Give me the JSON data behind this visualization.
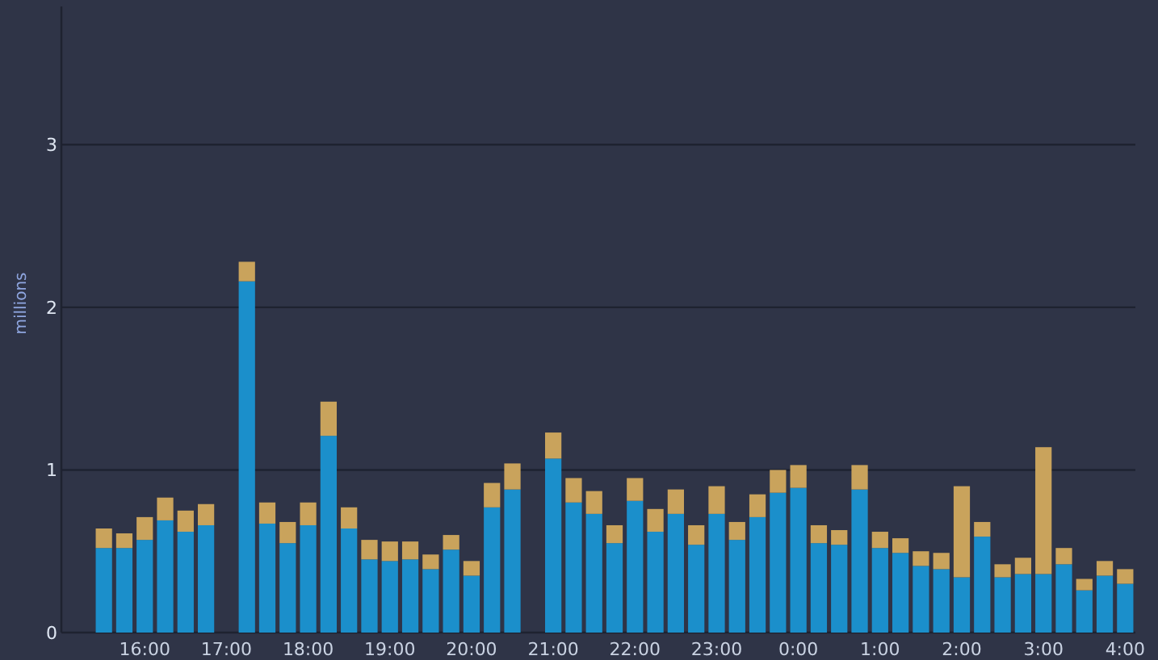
{
  "chart_data": {
    "type": "bar",
    "stacked": true,
    "ylabel": "millions",
    "categories": [
      null,
      null,
      "16:00",
      null,
      null,
      null,
      "17:00",
      null,
      null,
      null,
      "18:00",
      null,
      null,
      null,
      "19:00",
      null,
      null,
      null,
      "20:00",
      null,
      null,
      null,
      "21:00",
      null,
      null,
      null,
      "22:00",
      null,
      null,
      null,
      "23:00",
      null,
      null,
      null,
      "0:00",
      null,
      null,
      null,
      "1:00",
      null,
      null,
      null,
      "2:00",
      null,
      null,
      null,
      "3:00",
      null,
      null,
      null,
      "4:00"
    ],
    "series": [
      {
        "color": "#1b8fcb",
        "values": [
          0.52,
          0.52,
          0.57,
          0.69,
          0.62,
          0.66,
          null,
          2.16,
          0.67,
          0.55,
          0.66,
          1.21,
          0.64,
          0.45,
          0.44,
          0.45,
          0.39,
          0.51,
          0.35,
          0.77,
          0.88,
          null,
          1.07,
          0.8,
          0.73,
          0.55,
          0.81,
          0.62,
          0.73,
          0.54,
          0.73,
          0.57,
          0.71,
          0.86,
          0.89,
          0.55,
          0.54,
          0.88,
          0.52,
          0.49,
          0.41,
          0.39,
          0.34,
          0.59,
          0.34,
          0.36,
          0.36,
          0.42,
          0.26,
          0.35,
          0.3
        ]
      },
      {
        "color": "#c9a35c",
        "values": [
          0.12,
          0.09,
          0.14,
          0.14,
          0.13,
          0.13,
          null,
          0.12,
          0.13,
          0.13,
          0.14,
          0.21,
          0.13,
          0.12,
          0.12,
          0.11,
          0.09,
          0.09,
          0.09,
          0.15,
          0.16,
          null,
          0.16,
          0.15,
          0.14,
          0.11,
          0.14,
          0.14,
          0.15,
          0.12,
          0.17,
          0.11,
          0.14,
          0.14,
          0.14,
          0.11,
          0.09,
          0.15,
          0.1,
          0.09,
          0.09,
          0.1,
          0.56,
          0.09,
          0.08,
          0.1,
          0.78,
          0.1,
          0.07,
          0.09,
          0.09
        ]
      }
    ],
    "ylim": [
      0,
      3.85
    ],
    "yticks": [
      0,
      1,
      2,
      3
    ],
    "grid": "y"
  }
}
